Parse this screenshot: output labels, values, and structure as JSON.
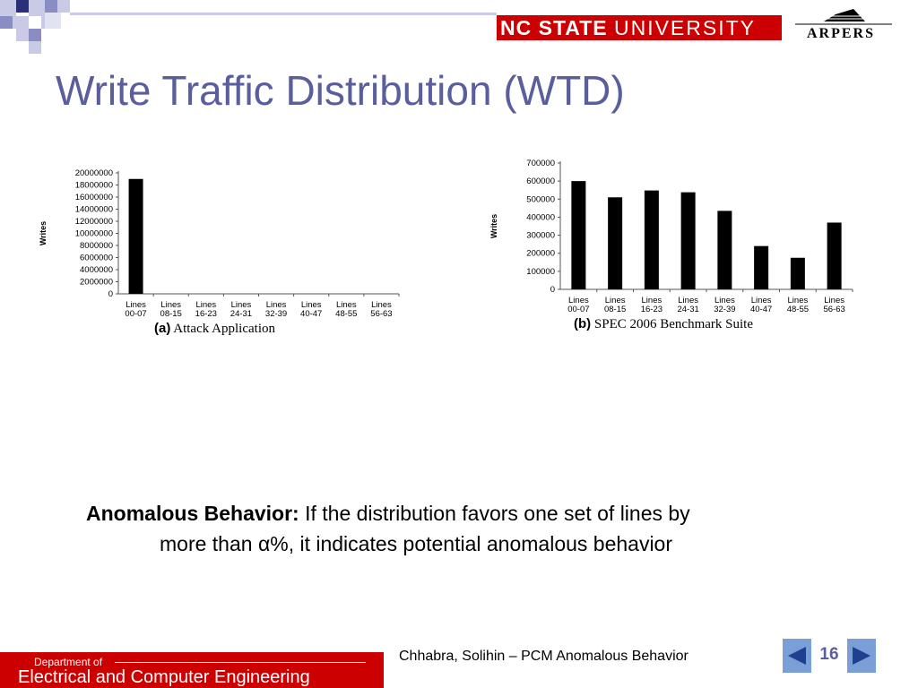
{
  "header": {
    "university_logo_part1": "NC STATE",
    "university_logo_part2": "UNIVERSITY",
    "lab_logo": "ARPERS"
  },
  "slide": {
    "title": "Write Traffic Distribution (WTD)",
    "body_bold": "Anomalous Behavior:",
    "body_line1": " If the distribution favors one set of lines by",
    "body_line2": "more than α%, it indicates potential anomalous behavior",
    "footer_text": "Chhabra, Solihin – PCM Anomalous Behavior",
    "page_number": "16",
    "department_small": "Department of",
    "department_large": "Electrical and Computer Engineering"
  },
  "chart_data": [
    {
      "type": "bar",
      "caption_label": "(a)",
      "caption_text": " Attack Application",
      "ylabel": "Writes",
      "xlabel": "",
      "categories": [
        "Lines\n00-07",
        "Lines\n08-15",
        "Lines\n16-23",
        "Lines\n24-31",
        "Lines\n32-39",
        "Lines\n40-47",
        "Lines\n48-55",
        "Lines\n56-63"
      ],
      "values": [
        19000000,
        0,
        0,
        0,
        0,
        0,
        0,
        0
      ],
      "ylim": [
        0,
        20000000
      ],
      "yticks": [
        "0",
        "2000000",
        "4000000",
        "6000000",
        "8000000",
        "10000000",
        "12000000",
        "14000000",
        "16000000",
        "18000000",
        "20000000"
      ],
      "grid": false,
      "bar_color": "#000000"
    },
    {
      "type": "bar",
      "caption_label": "(b)",
      "caption_text": " SPEC 2006 Benchmark Suite",
      "ylabel": "Writes",
      "xlabel": "",
      "categories": [
        "Lines\n00-07",
        "Lines\n08-15",
        "Lines\n16-23",
        "Lines\n24-31",
        "Lines\n32-39",
        "Lines\n40-47",
        "Lines\n48-55",
        "Lines\n56-63"
      ],
      "values": [
        600000,
        510000,
        548000,
        538000,
        435000,
        240000,
        175000,
        370000
      ],
      "ylim": [
        0,
        700000
      ],
      "yticks": [
        "0",
        "100000",
        "200000",
        "300000",
        "400000",
        "500000",
        "600000",
        "700000"
      ],
      "grid": false,
      "bar_color": "#000000"
    }
  ],
  "colors": {
    "title": "#5a5e9c",
    "brand_red": "#cc0000",
    "nav_button": "#7a9fd6",
    "corner_navy": "#2b2f7a",
    "corner_light": "#c9cbe6"
  },
  "icons": {
    "prev": "left-triangle-icon",
    "next": "right-triangle-icon"
  }
}
